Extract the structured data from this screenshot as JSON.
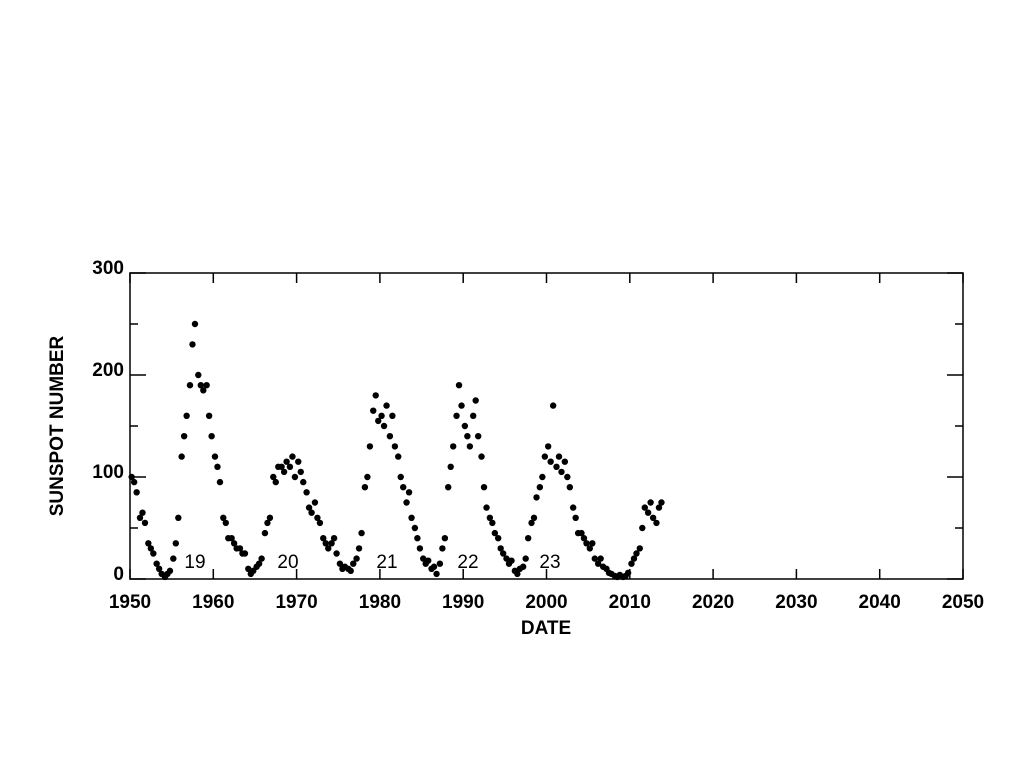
{
  "chart_data": {
    "type": "scatter",
    "xlabel": "DATE",
    "ylabel": "SUNSPOT NUMBER",
    "xlim": [
      1950,
      2050
    ],
    "xticks": [
      1950,
      1960,
      1970,
      1980,
      1990,
      2000,
      2010,
      2020,
      2030,
      2040,
      2050
    ],
    "ylim": [
      0,
      300
    ],
    "yticks": [
      0,
      100,
      200,
      300
    ],
    "yminor": [
      50,
      150,
      250
    ],
    "color": "#000000",
    "annotations": [
      "19",
      "20",
      "21",
      "22",
      "23"
    ],
    "x": [
      1950.2,
      1950.5,
      1950.8,
      1951.2,
      1951.5,
      1951.8,
      1952.2,
      1952.5,
      1952.8,
      1953.2,
      1953.5,
      1953.8,
      1954.2,
      1954.5,
      1954.8,
      1955.2,
      1955.5,
      1955.8,
      1956.2,
      1956.5,
      1956.8,
      1957.2,
      1957.5,
      1957.8,
      1958.2,
      1958.5,
      1958.8,
      1959.2,
      1959.5,
      1959.8,
      1960.2,
      1960.5,
      1960.8,
      1961.2,
      1961.5,
      1961.8,
      1962.2,
      1962.5,
      1962.8,
      1963.2,
      1963.5,
      1963.8,
      1964.2,
      1964.5,
      1964.8,
      1965.2,
      1965.5,
      1965.8,
      1966.2,
      1966.5,
      1966.8,
      1967.2,
      1967.5,
      1967.8,
      1968.2,
      1968.5,
      1968.8,
      1969.2,
      1969.5,
      1969.8,
      1970.2,
      1970.5,
      1970.8,
      1971.2,
      1971.5,
      1971.8,
      1972.2,
      1972.5,
      1972.8,
      1973.2,
      1973.5,
      1973.8,
      1974.2,
      1974.5,
      1974.8,
      1975.2,
      1975.5,
      1975.8,
      1976.2,
      1976.5,
      1976.8,
      1977.2,
      1977.5,
      1977.8,
      1978.2,
      1978.5,
      1978.8,
      1979.2,
      1979.5,
      1979.8,
      1980.2,
      1980.5,
      1980.8,
      1981.2,
      1981.5,
      1981.8,
      1982.2,
      1982.5,
      1982.8,
      1983.2,
      1983.5,
      1983.8,
      1984.2,
      1984.5,
      1984.8,
      1985.2,
      1985.5,
      1985.8,
      1986.2,
      1986.5,
      1986.8,
      1987.2,
      1987.5,
      1987.8,
      1988.2,
      1988.5,
      1988.8,
      1989.2,
      1989.5,
      1989.8,
      1990.2,
      1990.5,
      1990.8,
      1991.2,
      1991.5,
      1991.8,
      1992.2,
      1992.5,
      1992.8,
      1993.2,
      1993.5,
      1993.8,
      1994.2,
      1994.5,
      1994.8,
      1995.2,
      1995.5,
      1995.8,
      1996.2,
      1996.5,
      1996.8,
      1997.2,
      1997.5,
      1997.8,
      1998.2,
      1998.5,
      1998.8,
      1999.2,
      1999.5,
      1999.8,
      2000.2,
      2000.5,
      2000.8,
      2001.2,
      2001.5,
      2001.8,
      2002.2,
      2002.5,
      2002.8,
      2003.2,
      2003.5,
      2003.8,
      2004.2,
      2004.5,
      2004.8,
      2005.2,
      2005.5,
      2005.8,
      2006.2,
      2006.5,
      2006.8,
      2007.2,
      2007.5,
      2007.8,
      2008.2,
      2008.5,
      2008.8,
      2009.2,
      2009.5,
      2009.8,
      2010.2,
      2010.5,
      2010.8,
      2011.2,
      2011.5,
      2011.8,
      2012.2,
      2012.5,
      2012.8,
      2013.2,
      2013.5,
      2013.8
    ],
    "values": [
      100,
      95,
      85,
      60,
      65,
      55,
      35,
      30,
      25,
      15,
      10,
      5,
      2,
      5,
      8,
      20,
      35,
      60,
      120,
      140,
      160,
      190,
      230,
      250,
      200,
      190,
      185,
      190,
      160,
      140,
      120,
      110,
      95,
      60,
      55,
      40,
      40,
      35,
      30,
      30,
      25,
      25,
      10,
      5,
      8,
      12,
      15,
      20,
      45,
      55,
      60,
      100,
      95,
      110,
      110,
      105,
      115,
      110,
      120,
      100,
      115,
      105,
      95,
      85,
      70,
      65,
      75,
      60,
      55,
      40,
      35,
      30,
      35,
      40,
      25,
      15,
      10,
      12,
      10,
      8,
      15,
      20,
      30,
      45,
      90,
      100,
      130,
      165,
      180,
      155,
      160,
      150,
      170,
      140,
      160,
      130,
      120,
      100,
      90,
      75,
      85,
      60,
      50,
      40,
      30,
      20,
      15,
      18,
      10,
      12,
      5,
      15,
      30,
      40,
      90,
      110,
      130,
      160,
      190,
      170,
      150,
      140,
      130,
      160,
      175,
      140,
      120,
      90,
      70,
      60,
      55,
      45,
      40,
      30,
      25,
      20,
      15,
      18,
      8,
      5,
      10,
      12,
      20,
      40,
      55,
      60,
      80,
      90,
      100,
      120,
      130,
      115,
      170,
      110,
      120,
      105,
      115,
      100,
      90,
      70,
      60,
      45,
      45,
      40,
      35,
      30,
      35,
      20,
      15,
      20,
      12,
      10,
      6,
      5,
      3,
      2,
      4,
      2,
      3,
      6,
      15,
      20,
      25,
      30,
      50,
      70,
      65,
      75,
      60,
      55,
      70,
      75
    ]
  }
}
